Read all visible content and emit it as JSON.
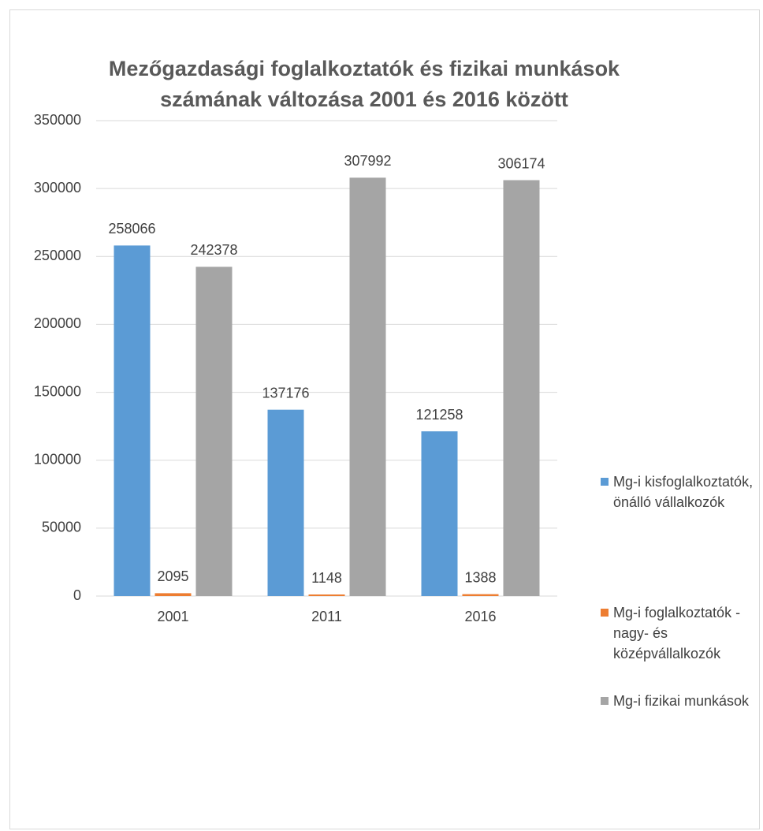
{
  "chart_data": {
    "type": "bar",
    "title": "Mezőgazdasági foglalkoztatók és fizikai munkások számának változása 2001 és 2016 között",
    "categories": [
      "2001",
      "2011",
      "2016"
    ],
    "series": [
      {
        "name": "Mg-i kisfoglalkoztatók, önálló vállalkozók",
        "color": "#5b9bd5",
        "values": [
          258066,
          137176,
          121258
        ]
      },
      {
        "name": "Mg-i foglalkoztatók - nagy- és középvállalkozók",
        "color": "#ed7d31",
        "values": [
          2095,
          1148,
          1388
        ]
      },
      {
        "name": "Mg-i fizikai munkások",
        "color": "#a5a5a5",
        "values": [
          242378,
          307992,
          306174
        ]
      }
    ],
    "ylim": [
      0,
      350000
    ],
    "yticks": [
      0,
      50000,
      100000,
      150000,
      200000,
      250000,
      300000,
      350000
    ],
    "grid": true,
    "legend": "right",
    "data_labels": true
  }
}
